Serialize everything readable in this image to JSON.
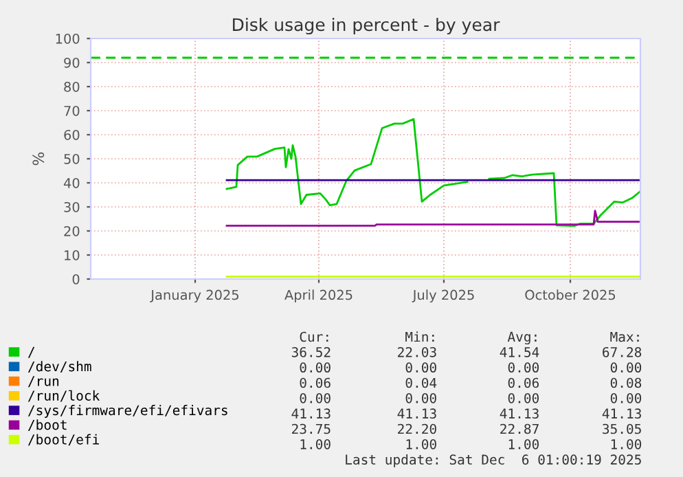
{
  "chart_data": {
    "type": "line",
    "title": "Disk usage in percent - by year",
    "ylabel": "%",
    "xlim": [
      "2024-10-17",
      "2025-11-21"
    ],
    "ylim": [
      0,
      100
    ],
    "yticks": [
      0,
      10,
      20,
      30,
      40,
      50,
      60,
      70,
      80,
      90,
      100
    ],
    "xticks": [
      {
        "value": "2025-01-01",
        "label": "January 2025"
      },
      {
        "value": "2025-04-01",
        "label": "April 2025"
      },
      {
        "value": "2025-07-01",
        "label": "July 2025"
      },
      {
        "value": "2025-10-01",
        "label": "October 2025"
      }
    ],
    "grid": true,
    "legend": "bottom",
    "marker": "none",
    "line_style": "solid",
    "ref_lines": [
      {
        "axis": "y",
        "value": 92,
        "color": "#00cc00",
        "line_style": "dashed"
      }
    ],
    "series": [
      {
        "name": "/",
        "color": "#00cc00",
        "x": [
          "2025-01-24",
          "2025-01-31",
          "2025-02-01",
          "2025-02-08",
          "2025-02-15",
          "2025-02-28",
          "2025-03-07",
          "2025-03-08",
          "2025-03-10",
          "2025-03-12",
          "2025-03-13",
          "2025-03-15",
          "2025-03-19",
          "2025-03-23",
          "2025-04-02",
          "2025-04-06",
          "2025-04-09",
          "2025-04-14",
          "2025-04-21",
          "2025-04-27",
          "2025-05-09",
          "2025-05-17",
          "2025-05-26",
          "2025-06-01",
          "2025-06-09",
          "2025-06-15",
          "2025-06-21",
          "2025-07-01",
          "2025-07-18",
          "2025-07-26",
          "2025-08-03",
          "2025-08-14",
          "2025-08-20",
          "2025-08-27",
          "2025-09-03",
          "2025-09-19",
          "2025-09-21",
          "2025-10-04",
          "2025-10-08",
          "2025-10-18",
          "2025-10-23",
          "2025-11-02",
          "2025-11-08",
          "2025-11-15",
          "2025-11-21"
        ],
        "values": [
          37.5,
          38.3,
          47.4,
          50.9,
          50.9,
          54.1,
          54.7,
          46.5,
          54,
          50,
          55.6,
          51,
          31.2,
          35,
          35.6,
          33.1,
          30.7,
          31.2,
          40.8,
          45.1,
          47.8,
          62.7,
          64.6,
          64.6,
          66.5,
          32.2,
          35,
          38.9,
          40.4,
          null,
          41.7,
          42,
          43.2,
          42.7,
          43.4,
          44,
          22.3,
          22.1,
          23,
          23,
          26.5,
          32.2,
          31.8,
          33.7,
          36.5
        ]
      },
      {
        "name": "/dev/shm",
        "color": "#0066b3"
      },
      {
        "name": "/run",
        "color": "#ff8000"
      },
      {
        "name": "/run/lock",
        "color": "#ffcc00"
      },
      {
        "name": "/sys/firmware/efi/efivars",
        "color": "#330099",
        "x": [
          "2025-01-24",
          "2025-11-21"
        ],
        "values": [
          41.1,
          41.1
        ]
      },
      {
        "name": "/boot",
        "color": "#990099",
        "x": [
          "2025-01-24",
          "2025-05-12",
          "2025-05-13",
          "2025-10-18",
          "2025-10-19",
          "2025-10-21",
          "2025-11-21"
        ],
        "values": [
          22.2,
          22.2,
          22.7,
          22.7,
          28.4,
          23.8,
          23.8
        ]
      },
      {
        "name": "/boot/efi",
        "color": "#ccff00",
        "x": [
          "2025-01-24",
          "2025-11-21"
        ],
        "values": [
          1,
          1
        ]
      }
    ],
    "annotations": [
      "Cur:",
      "Min:",
      "Avg:",
      "Max:",
      "36.52",
      "22.03",
      "41.54",
      "67.28",
      "0.00",
      "0.00",
      "0.00",
      "0.00",
      "0.06",
      "0.04",
      "0.06",
      "0.08",
      "0.00",
      "0.00",
      "0.00",
      "0.00",
      "41.13",
      "41.13",
      "41.13",
      "41.13",
      "23.75",
      "22.20",
      "22.87",
      "35.05",
      "1.00",
      "1.00",
      "1.00",
      "1.00",
      "Last update: Sat Dec  6 01:00:19 2025"
    ]
  }
}
